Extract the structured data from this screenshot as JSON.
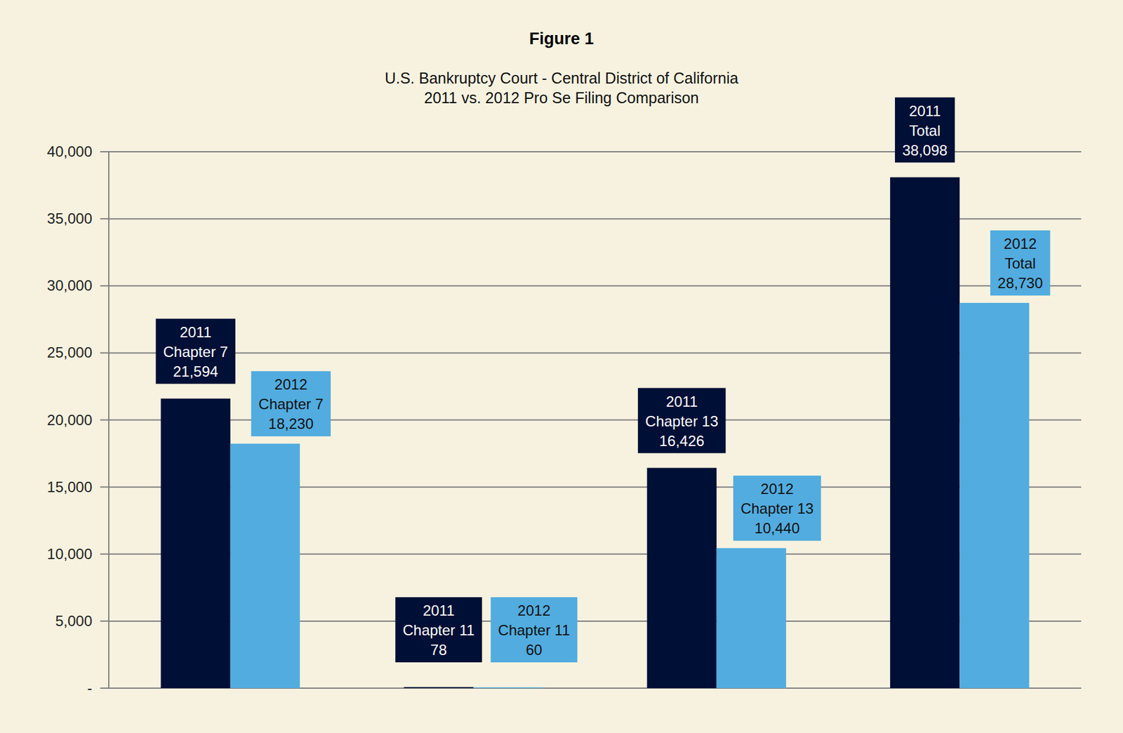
{
  "chart_data": {
    "type": "bar",
    "title": "Figure 1",
    "subtitle": [
      "U.S. Bankruptcy Court - Central District of California",
      "2011 vs. 2012 Pro Se Filing Comparison"
    ],
    "categories": [
      "Chapter 7",
      "Chapter 11",
      "Chapter 13",
      "Total"
    ],
    "series": [
      {
        "name": "2011",
        "color": "#000f35",
        "values": [
          21594,
          78,
          16426,
          38098
        ],
        "value_labels": [
          "21,594",
          "78",
          "16,426",
          "38,098"
        ]
      },
      {
        "name": "2012",
        "color": "#52acdf",
        "values": [
          18230,
          60,
          10440,
          28730
        ],
        "value_labels": [
          "18,230",
          "60",
          "10,440",
          "28,730"
        ]
      }
    ],
    "ylim": [
      0,
      40000
    ],
    "yticks": [
      {
        "value": 0,
        "label": "-"
      },
      {
        "value": 5000,
        "label": "5,000"
      },
      {
        "value": 10000,
        "label": "10,000"
      },
      {
        "value": 15000,
        "label": "15,000"
      },
      {
        "value": 20000,
        "label": "20,000"
      },
      {
        "value": 25000,
        "label": "25,000"
      },
      {
        "value": 30000,
        "label": "30,000"
      },
      {
        "value": 35000,
        "label": "35,000"
      },
      {
        "value": 40000,
        "label": "40,000"
      }
    ],
    "grid": true,
    "data_labels": true,
    "tick_labels": "y"
  }
}
